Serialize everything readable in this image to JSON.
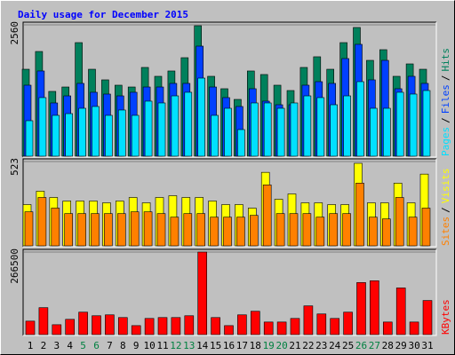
{
  "chart_data": [
    {
      "type": "bar",
      "title": "Daily usage for December 2015",
      "ylim": [
        0,
        2560
      ],
      "yticks": [
        2560
      ],
      "legend_separator": "/",
      "series": [
        {
          "name": "Hits",
          "color": "#00805c",
          "values": [
            1695,
            2041,
            1263,
            1349,
            2214,
            1695,
            1488,
            1384,
            1349,
            1730,
            1557,
            1661,
            1920,
            2543,
            1557,
            1315,
            1107,
            1661,
            1592,
            1384,
            1280,
            1730,
            1938,
            1695,
            2214,
            2509,
            1868,
            2076,
            1557,
            1799,
            1695
          ]
        },
        {
          "name": "Files",
          "color": "#0040ff",
          "values": [
            1384,
            1661,
            1038,
            1176,
            1419,
            1246,
            1211,
            1176,
            1246,
            1349,
            1349,
            1419,
            1419,
            2145,
            1349,
            1142,
            969,
            1315,
            1073,
            1003,
            1003,
            1384,
            1453,
            1419,
            1903,
            2180,
            1488,
            1868,
            1315,
            1557,
            1419
          ]
        },
        {
          "name": "Pages",
          "color": "#00e0ff",
          "values": [
            692,
            1142,
            796,
            830,
            934,
            969,
            796,
            900,
            796,
            1073,
            1038,
            1176,
            1246,
            1522,
            796,
            934,
            519,
            1038,
            1038,
            934,
            1038,
            1176,
            1142,
            1003,
            1176,
            1453,
            934,
            934,
            1246,
            1211,
            1280
          ]
        }
      ]
    },
    {
      "type": "bar",
      "ylim": [
        0,
        523
      ],
      "yticks": [
        523
      ],
      "legend_separator": "/",
      "series": [
        {
          "name": "Visits",
          "color": "#ffff00",
          "values": [
            256,
            339,
            300,
            278,
            278,
            278,
            267,
            278,
            300,
            267,
            300,
            311,
            300,
            300,
            278,
            256,
            256,
            234,
            456,
            289,
            322,
            267,
            267,
            256,
            256,
            512,
            267,
            267,
            389,
            267,
            445
          ]
        },
        {
          "name": "Sites",
          "color": "#ff8000",
          "values": [
            211,
            300,
            234,
            200,
            200,
            200,
            200,
            200,
            211,
            211,
            200,
            178,
            200,
            200,
            178,
            178,
            178,
            189,
            378,
            200,
            200,
            200,
            178,
            200,
            200,
            389,
            178,
            167,
            300,
            178,
            234
          ]
        }
      ]
    },
    {
      "type": "bar",
      "ylim": [
        0,
        266500
      ],
      "yticks": [
        266500
      ],
      "categories": [
        "1",
        "2",
        "3",
        "4",
        "5",
        "6",
        "7",
        "8",
        "9",
        "10",
        "11",
        "12",
        "13",
        "14",
        "15",
        "16",
        "17",
        "18",
        "19",
        "20",
        "21",
        "22",
        "23",
        "24",
        "25",
        "26",
        "27",
        "28",
        "29",
        "30",
        "31"
      ],
      "category_colors": [
        "#000000",
        "#000000",
        "#000000",
        "#000000",
        "#008040",
        "#008040",
        "#000000",
        "#000000",
        "#000000",
        "#000000",
        "#000000",
        "#008040",
        "#008040",
        "#000000",
        "#000000",
        "#000000",
        "#000000",
        "#000000",
        "#008040",
        "#008040",
        "#000000",
        "#000000",
        "#000000",
        "#000000",
        "#000000",
        "#008040",
        "#008040",
        "#000000",
        "#000000",
        "#000000",
        "#000000"
      ],
      "series": [
        {
          "name": "KBytes",
          "color": "#ff0000",
          "values": [
            43455,
            86910,
            31867,
            49249,
            72425,
            60837,
            63734,
            55043,
            28970,
            52146,
            55043,
            55043,
            60837,
            266500,
            55043,
            28970,
            63734,
            75322,
            40558,
            40558,
            52146,
            92704,
            66631,
            52146,
            72425,
            168026,
            173820,
            40558,
            150644,
            40558,
            110086
          ]
        }
      ]
    }
  ]
}
